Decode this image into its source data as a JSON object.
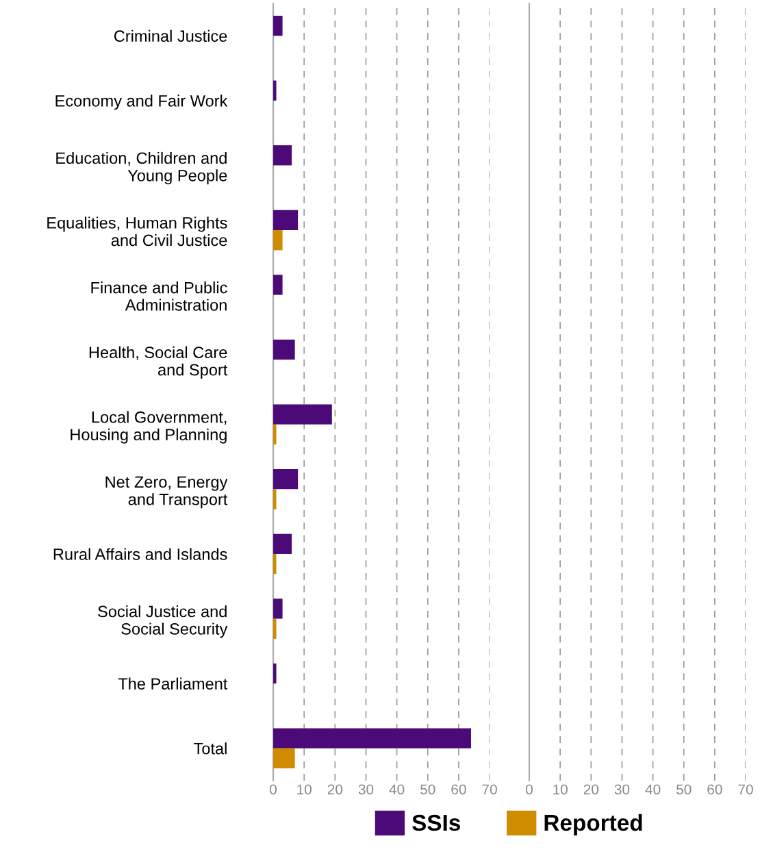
{
  "chart_data": [
    {
      "type": "bar",
      "orientation": "horizontal",
      "categories": [
        "Criminal Justice",
        "Economy and Fair Work",
        "Education, Children and\nYoung People",
        "Equalities, Human Rights\nand Civil Justice",
        "Finance and Public\nAdministration",
        "Health, Social Care\nand Sport",
        "Local Government,\nHousing and Planning",
        "Net Zero, Energy\nand Transport",
        "Rural Affairs and Islands",
        "Social Justice and\nSocial Security",
        "The Parliament",
        "Total"
      ],
      "series": [
        {
          "name": "SSIs",
          "color": "#4b0a78",
          "values": [
            3,
            1,
            6,
            8,
            3,
            7,
            19,
            8,
            6,
            3,
            1,
            64
          ]
        },
        {
          "name": "Reported",
          "color": "#d08c00",
          "values": [
            null,
            null,
            null,
            3,
            null,
            null,
            1,
            1,
            1,
            1,
            null,
            7
          ]
        }
      ],
      "xlim": [
        0,
        70
      ],
      "xticks": [
        0,
        10,
        20,
        30,
        40,
        50,
        60,
        70
      ],
      "grid": "x",
      "legend": "bottom"
    },
    {
      "type": "bar",
      "orientation": "horizontal",
      "categories": [
        null,
        null,
        null,
        null,
        null,
        null,
        null,
        null,
        null,
        null,
        null,
        null
      ],
      "series": [
        {
          "values": [
            0,
            0,
            0,
            0,
            0,
            0,
            0,
            0,
            0,
            0,
            0,
            0
          ]
        },
        {
          "values": [
            0,
            0,
            0,
            0,
            0,
            0,
            0,
            0,
            0,
            0,
            0,
            0
          ]
        }
      ],
      "xlim": [
        0,
        70
      ],
      "xticks": [
        0,
        10,
        20,
        30,
        40,
        50,
        60,
        70
      ],
      "grid": "x"
    }
  ]
}
